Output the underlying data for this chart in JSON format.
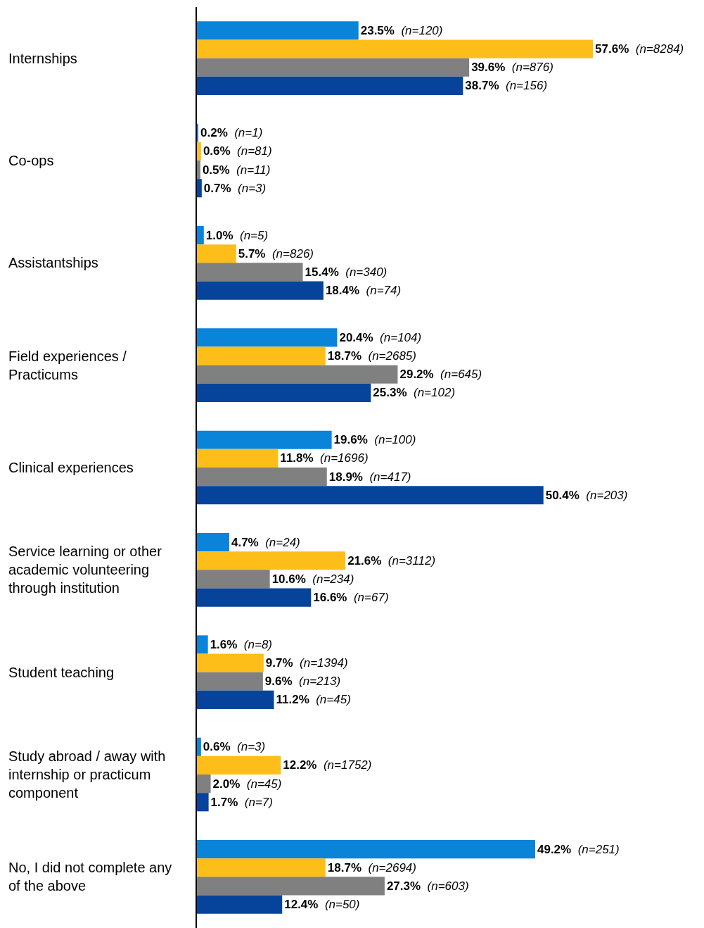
{
  "chart_data": {
    "type": "bar",
    "orientation": "horizontal",
    "categories": [
      "Internships",
      "Co-ops",
      "Assistantships",
      "Field experiences / Practicums",
      "Clinical experiences",
      "Service learning or other academic volunteering through institution",
      "Student teaching",
      "Study abroad / away with internship or practicum component",
      "No, I did not complete any of the above"
    ],
    "xlim": [
      0,
      58
    ],
    "tick_labels": "y",
    "series": [
      {
        "color": "#0a84d8",
        "values": [
          23.5,
          0.2,
          1.0,
          20.4,
          19.6,
          4.7,
          1.6,
          0.6,
          49.2
        ],
        "value_labels": [
          "23.5% (n=120)",
          "0.2% (n=1)",
          "1.0% (n=5)",
          "20.4% (n=104)",
          "19.6% (n=100)",
          "4.7% (n=24)",
          "1.6% (n=8)",
          "0.6% (n=3)",
          "49.2% (n=251)"
        ]
      },
      {
        "color": "#fdbe19",
        "values": [
          57.6,
          0.6,
          5.7,
          18.7,
          11.8,
          21.6,
          9.7,
          12.2,
          18.7
        ],
        "value_labels": [
          "57.6% (n=8284)",
          "0.6% (n=81)",
          "5.7% (n=826)",
          "18.7% (n=2685)",
          "11.8% (n=1696)",
          "21.6% (n=3112)",
          "9.7% (n=1394)",
          "12.2% (n=1752)",
          "18.7% (n=2694)"
        ]
      },
      {
        "color": "#808080",
        "values": [
          39.6,
          0.5,
          15.4,
          29.2,
          18.9,
          10.6,
          9.6,
          2.0,
          27.3
        ],
        "value_labels": [
          "39.6% (n=876)",
          "0.5% (n=11)",
          "15.4% (n=340)",
          "29.2% (n=645)",
          "18.9% (n=417)",
          "10.6% (n=234)",
          "9.6% (n=213)",
          "2.0% (n=45)",
          "27.3% (n=603)"
        ]
      },
      {
        "color": "#05449a",
        "values": [
          38.7,
          0.7,
          18.4,
          25.3,
          50.4,
          16.6,
          11.2,
          1.7,
          12.4
        ],
        "value_labels": [
          "38.7% (n=156)",
          "0.7% (n=3)",
          "18.4% (n=74)",
          "25.3% (n=102)",
          "50.4% (n=203)",
          "16.6% (n=67)",
          "11.2% (n=45)",
          "1.7% (n=7)",
          "12.4% (n=50)"
        ]
      }
    ]
  }
}
